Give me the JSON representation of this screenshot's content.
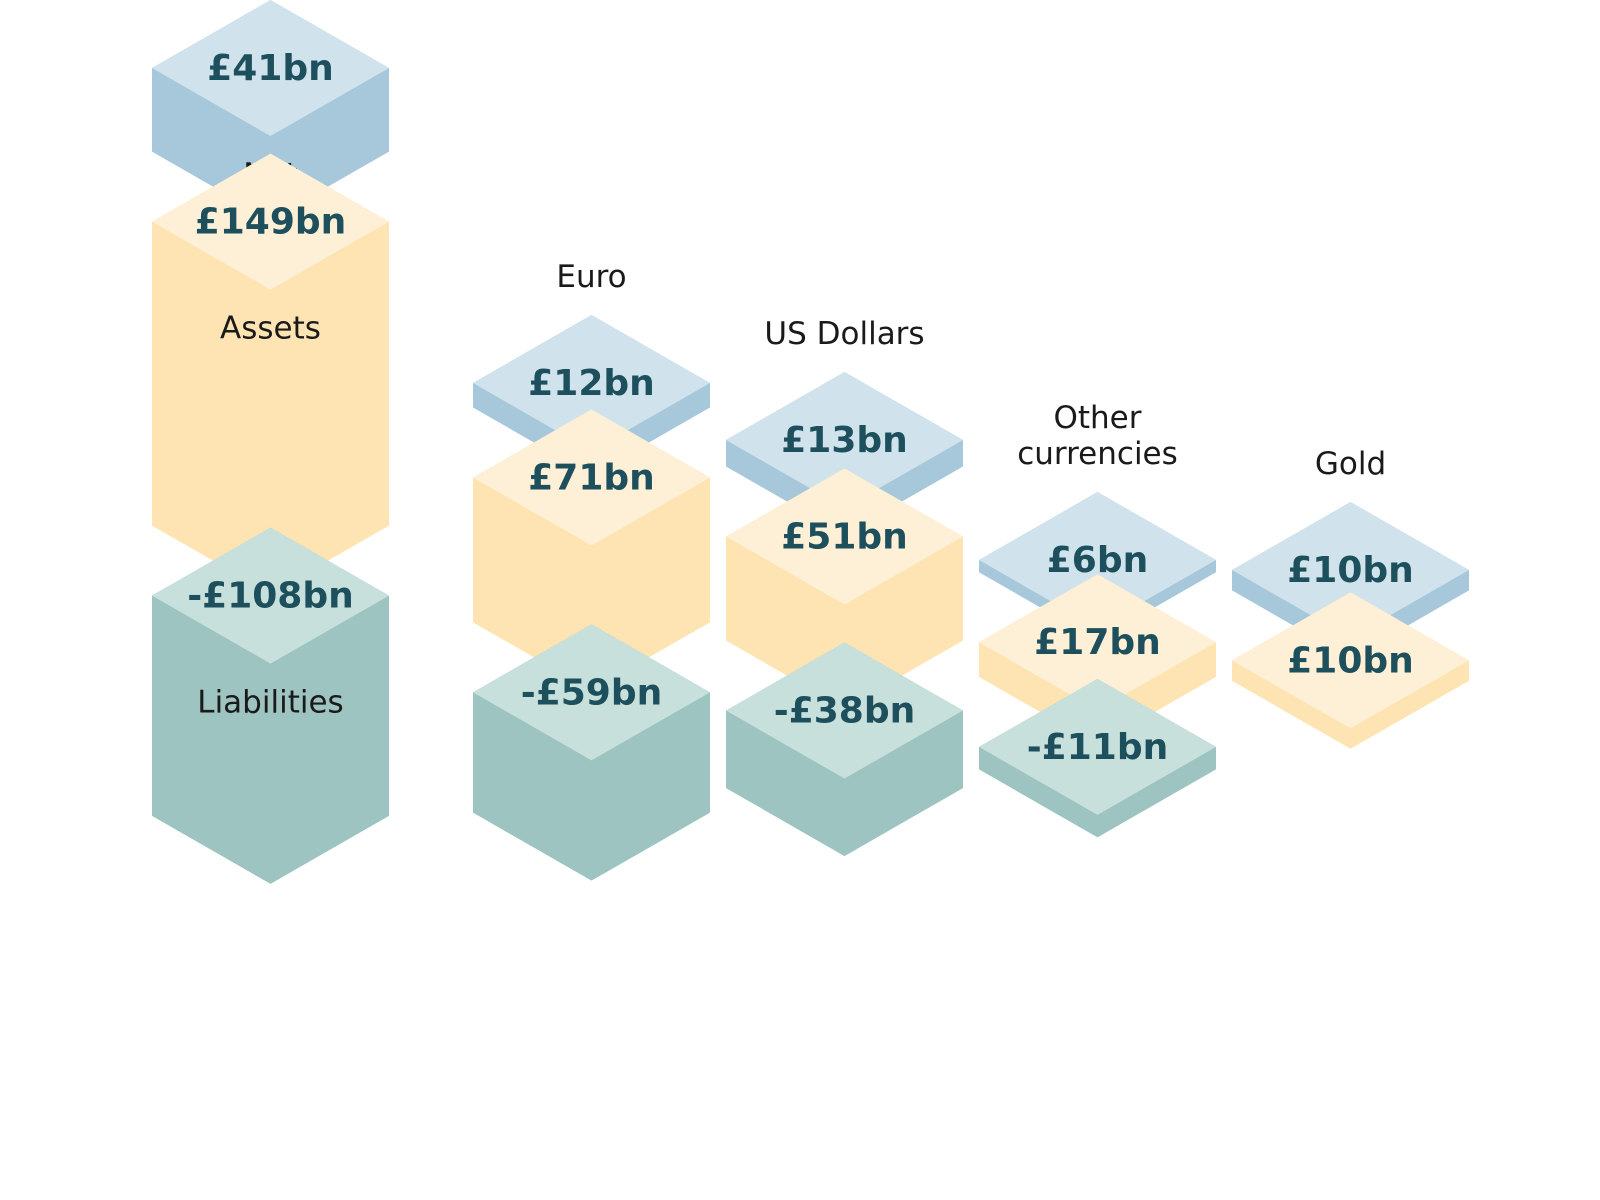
{
  "chart_data": {
    "type": "bar",
    "categories": [
      "",
      "Euro",
      "US Dollars",
      "Other currencies",
      "Gold"
    ],
    "category_lines": [
      [],
      [
        "Euro"
      ],
      [
        "US Dollars"
      ],
      [
        "Other",
        "currencies"
      ],
      [
        "Gold"
      ]
    ],
    "series": [
      {
        "name": "Net",
        "values": [
          41,
          12,
          13,
          6,
          10
        ],
        "labels": [
          "£41bn",
          "£12bn",
          "£13bn",
          "£6bn",
          "£10bn"
        ]
      },
      {
        "name": "Assets",
        "values": [
          149,
          71,
          51,
          17,
          10
        ],
        "labels": [
          "£149bn",
          "£71bn",
          "£51bn",
          "£17bn",
          "£10bn"
        ]
      },
      {
        "name": "Liabilities",
        "values": [
          -108,
          -59,
          -38,
          -11,
          null
        ],
        "labels": [
          "-£108bn",
          "-£59bn",
          "-£38bn",
          "-£11bn",
          ""
        ]
      }
    ],
    "colors": {
      "net_top": "#d0e3ec",
      "net_side": "#a7c8da",
      "assets_top": "#fef0d6",
      "assets_side": "#fde4b2",
      "liabilities_top": "#c7e0dc",
      "liabilities_side": "#9dc4c0"
    }
  }
}
